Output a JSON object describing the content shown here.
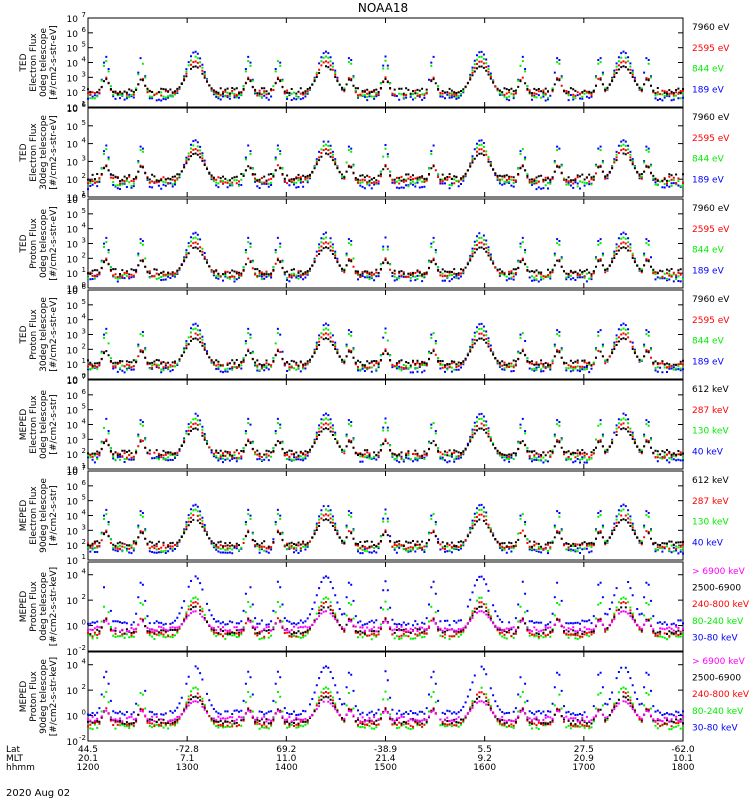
{
  "title": "NOAA18",
  "date_label": "2020 Aug 02",
  "colors": {
    "black": "#000000",
    "red": "#ff0000",
    "green": "#00ee00",
    "blue": "#0000ff",
    "magenta": "#ff00ff"
  },
  "chart_data": {
    "type": "scatter",
    "x_time": {
      "start": "1200",
      "end": "1800",
      "tick_rows": [
        {
          "label": "Lat",
          "values": [
            "44.5",
            "-72.8",
            "69.2",
            "-38.9",
            "5.5",
            "27.5",
            "-62.0"
          ]
        },
        {
          "label": "MLT",
          "values": [
            "20.1",
            "7.1",
            "11.0",
            "21.4",
            "9.2",
            "20.9",
            "10.1"
          ]
        },
        {
          "label": "hhmm",
          "values": [
            "1200",
            "1300",
            "1400",
            "1500",
            "1600",
            "1700",
            "1800"
          ]
        }
      ]
    },
    "panels": [
      {
        "ylabel_lines": [
          "TED",
          "Electron Flux",
          "0deg telescope",
          "[#/cm2-s-str-eV]"
        ],
        "ylim_log10": [
          1,
          7
        ],
        "ytick_exponents": [
          1,
          2,
          3,
          4,
          5,
          6,
          7
        ],
        "legend": [
          {
            "name": "7960 eV",
            "color": "#000000"
          },
          {
            "name": "2595 eV",
            "color": "#ff0000"
          },
          {
            "name": "844 eV",
            "color": "#00ee00"
          },
          {
            "name": "189 eV",
            "color": "#0000ff"
          }
        ]
      },
      {
        "ylabel_lines": [
          "TED",
          "Electron Flux",
          "30deg telescope",
          "[#/cm2-s-str-eV]"
        ],
        "ylim_log10": [
          1,
          6
        ],
        "ytick_exponents": [
          1,
          2,
          3,
          4,
          5,
          6
        ],
        "legend": [
          {
            "name": "7960 eV",
            "color": "#000000"
          },
          {
            "name": "2595 eV",
            "color": "#ff0000"
          },
          {
            "name": "844 eV",
            "color": "#00ee00"
          },
          {
            "name": "189 eV",
            "color": "#0000ff"
          }
        ]
      },
      {
        "ylabel_lines": [
          "TED",
          "Proton Flux",
          "0deg telescope",
          "[#/cm2-s-str-eV]"
        ],
        "ylim_log10": [
          0,
          6
        ],
        "ytick_exponents": [
          0,
          1,
          2,
          3,
          4,
          5,
          6
        ],
        "legend": [
          {
            "name": "7960 eV",
            "color": "#000000"
          },
          {
            "name": "2595 eV",
            "color": "#ff0000"
          },
          {
            "name": "844 eV",
            "color": "#00ee00"
          },
          {
            "name": "189 eV",
            "color": "#0000ff"
          }
        ]
      },
      {
        "ylabel_lines": [
          "TED",
          "Proton Flux",
          "30deg telescope",
          "[#/cm2-s-str-eV]"
        ],
        "ylim_log10": [
          0,
          6
        ],
        "ytick_exponents": [
          0,
          1,
          2,
          3,
          4,
          5,
          6
        ],
        "legend": [
          {
            "name": "7960 eV",
            "color": "#000000"
          },
          {
            "name": "2595 eV",
            "color": "#ff0000"
          },
          {
            "name": "844 eV",
            "color": "#00ee00"
          },
          {
            "name": "189 eV",
            "color": "#0000ff"
          }
        ]
      },
      {
        "ylabel_lines": [
          "MEPED",
          "Electron Flux",
          "0deg telescope",
          "[#/cm2-s-str]"
        ],
        "ylim_log10": [
          1,
          7
        ],
        "ytick_exponents": [
          1,
          2,
          3,
          4,
          5,
          6,
          7
        ],
        "legend": [
          {
            "name": "612 keV",
            "color": "#000000"
          },
          {
            "name": "287 keV",
            "color": "#ff0000"
          },
          {
            "name": "130 keV",
            "color": "#00ee00"
          },
          {
            "name": "40 keV",
            "color": "#0000ff"
          }
        ]
      },
      {
        "ylabel_lines": [
          "MEPED",
          "Electron Flux",
          "90deg telescope",
          "[#/cm2-s-str]"
        ],
        "ylim_log10": [
          1,
          7
        ],
        "ytick_exponents": [
          1,
          2,
          3,
          4,
          5,
          6,
          7
        ],
        "legend": [
          {
            "name": "612 keV",
            "color": "#000000"
          },
          {
            "name": "287 keV",
            "color": "#ff0000"
          },
          {
            "name": "130 keV",
            "color": "#00ee00"
          },
          {
            "name": "40 keV",
            "color": "#0000ff"
          }
        ]
      },
      {
        "ylabel_lines": [
          "MEPED",
          "Proton Flux",
          "0deg telescope",
          "[#/cm2-s-str-keV]"
        ],
        "ylim_log10": [
          -2,
          5
        ],
        "ytick_exponents": [
          -2,
          0,
          2,
          4
        ],
        "legend": [
          {
            "name": "> 6900 keV",
            "color": "#ff00ff"
          },
          {
            "name": "2500-6900",
            "color": "#000000"
          },
          {
            "name": "240-800 keV",
            "color": "#ff0000"
          },
          {
            "name": "80-240 keV",
            "color": "#00ee00"
          },
          {
            "name": "30-80 keV",
            "color": "#0000ff"
          }
        ]
      },
      {
        "ylabel_lines": [
          "MEPED",
          "Proton Flux",
          "90deg telescope",
          "[#/cm2-s-str-keV]"
        ],
        "ylim_log10": [
          -2,
          5
        ],
        "ytick_exponents": [
          -2,
          0,
          2,
          4
        ],
        "legend": [
          {
            "name": "> 6900 keV",
            "color": "#ff00ff"
          },
          {
            "name": "2500-6900",
            "color": "#000000"
          },
          {
            "name": "240-800 keV",
            "color": "#ff0000"
          },
          {
            "name": "80-240 keV",
            "color": "#00ee00"
          },
          {
            "name": "30-80 keV",
            "color": "#0000ff"
          }
        ]
      }
    ]
  }
}
